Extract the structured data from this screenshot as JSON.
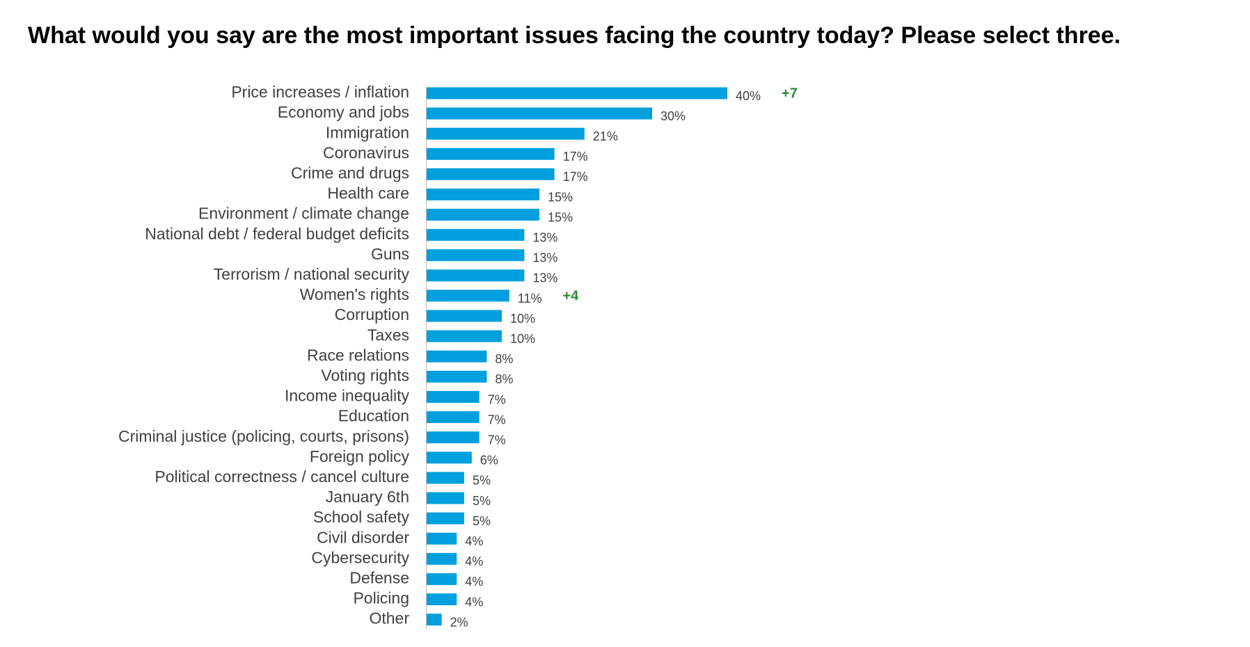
{
  "title": "What would you say are the most important issues facing the country today? Please select three.",
  "colors": {
    "bar": "#009FDD",
    "change": "#2E8B3A",
    "axis": "#BFBFBF"
  },
  "chart_data": {
    "type": "bar",
    "orientation": "horizontal",
    "title": "What would you say are the most important issues facing the country today? Please select three.",
    "xlim": [
      0,
      50
    ],
    "grid": false,
    "categories": [
      "Price increases / inflation",
      "Economy and jobs",
      "Immigration",
      "Coronavirus",
      "Crime and drugs",
      "Health care",
      "Environment / climate change",
      "National debt / federal budget deficits",
      "Guns",
      "Terrorism / national security",
      "Women's rights",
      "Corruption",
      "Taxes",
      "Race relations",
      "Voting rights",
      "Income inequality",
      "Education",
      "Criminal justice (policing, courts, prisons)",
      "Foreign policy",
      "Political correctness / cancel culture",
      "January 6th",
      "School safety",
      "Civil disorder",
      "Cybersecurity",
      "Defense",
      "Policing",
      "Other"
    ],
    "values": [
      40,
      30,
      21,
      17,
      17,
      15,
      15,
      13,
      13,
      13,
      11,
      10,
      10,
      8,
      8,
      7,
      7,
      7,
      6,
      5,
      5,
      5,
      4,
      4,
      4,
      4,
      2
    ],
    "data_labels": [
      "40%",
      "30%",
      "21%",
      "17%",
      "17%",
      "15%",
      "15%",
      "13%",
      "13%",
      "13%",
      "11%",
      "10%",
      "10%",
      "8%",
      "8%",
      "7%",
      "7%",
      "7%",
      "6%",
      "5%",
      "5%",
      "5%",
      "4%",
      "4%",
      "4%",
      "4%",
      "2%"
    ],
    "annotations": [
      {
        "category": "Price increases / inflation",
        "text": "+7"
      },
      {
        "category": "Women's rights",
        "text": "+4"
      }
    ]
  }
}
